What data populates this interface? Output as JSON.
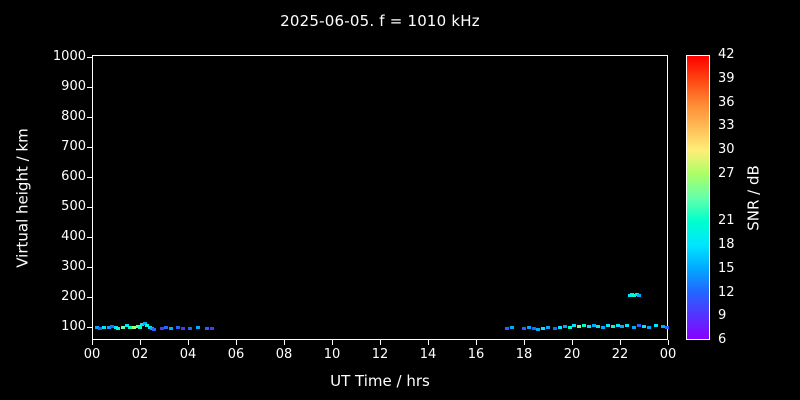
{
  "figure": {
    "background": "#000000",
    "foreground": "#ffffff"
  },
  "chart_data": {
    "type": "heatmap",
    "title": "2025-06-05. f = 1010 kHz",
    "xlabel": "UT Time / hrs",
    "ylabel": "Virtual height / km",
    "xlim": [
      0,
      24
    ],
    "ylim": [
      55,
      1005
    ],
    "grid": false,
    "x_ticks": [
      {
        "t": 0,
        "label": "00"
      },
      {
        "t": 2,
        "label": "02"
      },
      {
        "t": 4,
        "label": "04"
      },
      {
        "t": 6,
        "label": "06"
      },
      {
        "t": 8,
        "label": "08"
      },
      {
        "t": 10,
        "label": "10"
      },
      {
        "t": 12,
        "label": "12"
      },
      {
        "t": 14,
        "label": "14"
      },
      {
        "t": 16,
        "label": "16"
      },
      {
        "t": 18,
        "label": "18"
      },
      {
        "t": 20,
        "label": "20"
      },
      {
        "t": 22,
        "label": "22"
      },
      {
        "t": 24,
        "label": "00"
      }
    ],
    "y_ticks": [
      100,
      200,
      300,
      400,
      500,
      600,
      700,
      800,
      900,
      1000
    ],
    "colorbar": {
      "label": "SNR / dB",
      "min": 6,
      "max": 42,
      "tick_values": [
        42,
        39,
        36,
        33,
        30,
        27,
        21,
        18,
        15,
        12,
        9,
        6
      ],
      "stops": [
        {
          "v": 6,
          "c": "#8800ff"
        },
        {
          "v": 9,
          "c": "#5533ff"
        },
        {
          "v": 12,
          "c": "#2266ff"
        },
        {
          "v": 15,
          "c": "#00aaff"
        },
        {
          "v": 18,
          "c": "#00e6ff"
        },
        {
          "v": 21,
          "c": "#00ffcc"
        },
        {
          "v": 24,
          "c": "#66ffaa"
        },
        {
          "v": 27,
          "c": "#aaff66"
        },
        {
          "v": 30,
          "c": "#ffee77"
        },
        {
          "v": 33,
          "c": "#ffbb55"
        },
        {
          "v": 36,
          "c": "#ff8833"
        },
        {
          "v": 39,
          "c": "#ff4411"
        },
        {
          "v": 42,
          "c": "#ff0000"
        }
      ]
    },
    "points": [
      [
        0.2,
        100,
        15
      ],
      [
        0.35,
        95,
        12
      ],
      [
        0.5,
        100,
        18
      ],
      [
        0.7,
        98,
        15
      ],
      [
        0.85,
        102,
        12
      ],
      [
        1.0,
        100,
        18
      ],
      [
        1.1,
        96,
        21
      ],
      [
        1.3,
        100,
        24
      ],
      [
        1.45,
        104,
        18
      ],
      [
        1.6,
        100,
        21
      ],
      [
        1.75,
        98,
        27
      ],
      [
        1.9,
        102,
        24
      ],
      [
        2.0,
        100,
        21
      ],
      [
        2.1,
        108,
        18
      ],
      [
        2.2,
        112,
        15
      ],
      [
        2.3,
        105,
        21
      ],
      [
        2.4,
        98,
        18
      ],
      [
        2.5,
        95,
        15
      ],
      [
        2.6,
        92,
        12
      ],
      [
        2.9,
        95,
        9
      ],
      [
        3.1,
        98,
        12
      ],
      [
        3.3,
        95,
        15
      ],
      [
        3.6,
        98,
        12
      ],
      [
        3.8,
        95,
        9
      ],
      [
        4.1,
        95,
        12
      ],
      [
        4.4,
        98,
        15
      ],
      [
        4.8,
        95,
        12
      ],
      [
        5.0,
        95,
        9
      ],
      [
        17.3,
        95,
        12
      ],
      [
        17.5,
        98,
        15
      ],
      [
        18.0,
        95,
        12
      ],
      [
        18.2,
        98,
        15
      ],
      [
        18.4,
        95,
        12
      ],
      [
        18.6,
        92,
        15
      ],
      [
        18.8,
        95,
        18
      ],
      [
        19.0,
        98,
        15
      ],
      [
        19.3,
        95,
        12
      ],
      [
        19.5,
        100,
        18
      ],
      [
        19.7,
        102,
        15
      ],
      [
        19.9,
        100,
        21
      ],
      [
        20.1,
        105,
        18
      ],
      [
        20.3,
        102,
        24
      ],
      [
        20.5,
        105,
        21
      ],
      [
        20.7,
        102,
        18
      ],
      [
        20.9,
        105,
        15
      ],
      [
        21.1,
        102,
        18
      ],
      [
        21.3,
        100,
        15
      ],
      [
        21.5,
        105,
        18
      ],
      [
        21.7,
        102,
        21
      ],
      [
        21.9,
        105,
        18
      ],
      [
        22.1,
        102,
        15
      ],
      [
        22.3,
        105,
        18
      ],
      [
        22.6,
        100,
        15
      ],
      [
        22.8,
        105,
        12
      ],
      [
        23.0,
        102,
        18
      ],
      [
        23.2,
        100,
        15
      ],
      [
        23.5,
        105,
        18
      ],
      [
        23.8,
        102,
        15
      ],
      [
        23.95,
        100,
        12
      ],
      [
        22.4,
        205,
        18
      ],
      [
        22.5,
        210,
        18
      ],
      [
        22.6,
        205,
        21
      ],
      [
        22.7,
        210,
        18
      ],
      [
        22.8,
        205,
        15
      ]
    ]
  }
}
